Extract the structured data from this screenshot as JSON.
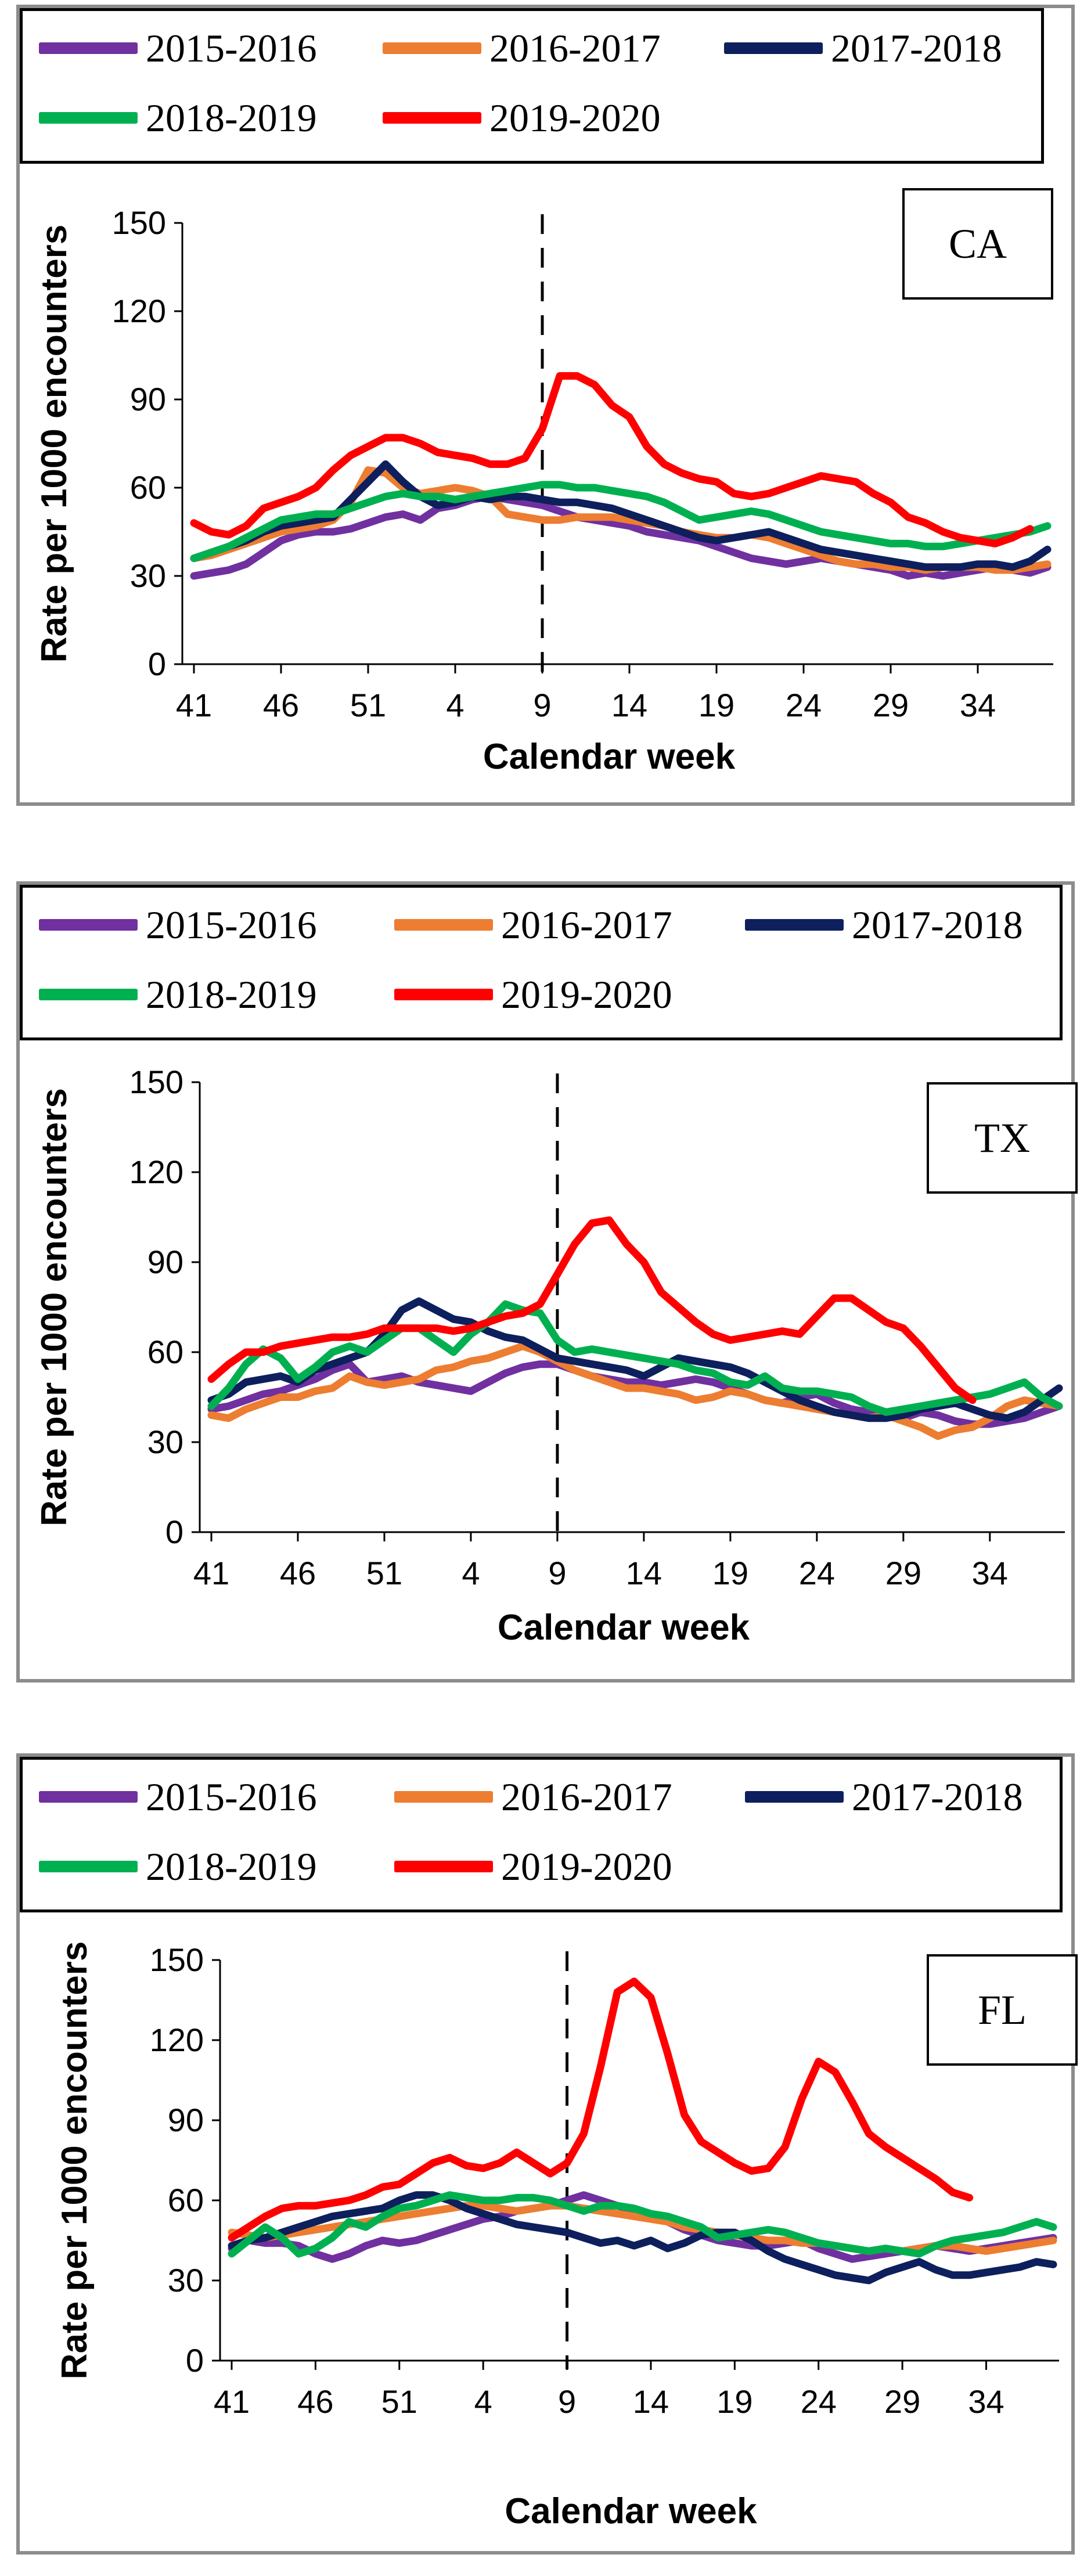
{
  "chart_data": [
    {
      "type": "line",
      "state": "CA",
      "xlabel": "Calendar week",
      "ylabel": "Rate per 1000 encounters",
      "ylim": [
        0,
        150
      ],
      "yticks": [
        "0",
        "30",
        "60",
        "90",
        "120",
        "150"
      ],
      "xtick_labels": [
        "41",
        "46",
        "51",
        "4",
        "9",
        "14",
        "19",
        "24",
        "29",
        "34"
      ],
      "marker_week_label": "9",
      "legend": [
        "2015-2016",
        "2016-2017",
        "2017-2018",
        "2018-2019",
        "2019-2020"
      ],
      "series": [
        {
          "name": "2015-2016",
          "color": "#7030A0",
          "values": [
            30,
            31,
            32,
            34,
            38,
            42,
            44,
            45,
            45,
            46,
            48,
            50,
            51,
            49,
            53,
            54,
            56,
            57,
            56,
            55,
            54,
            52,
            50,
            49,
            48,
            47,
            45,
            44,
            43,
            42,
            40,
            38,
            36,
            35,
            34,
            35,
            36,
            35,
            34,
            33,
            32,
            30,
            31,
            30,
            31,
            32,
            33,
            32,
            31,
            33
          ]
        },
        {
          "name": "2016-2017",
          "color": "#ED7D31",
          "values": [
            36,
            37,
            39,
            41,
            43,
            45,
            46,
            47,
            49,
            55,
            66,
            65,
            60,
            58,
            59,
            60,
            59,
            57,
            51,
            50,
            49,
            49,
            50,
            50,
            50,
            49,
            48,
            47,
            45,
            44,
            43,
            43,
            44,
            43,
            41,
            39,
            37,
            35,
            34,
            34,
            33,
            33,
            32,
            33,
            33,
            33,
            32,
            32,
            33,
            34
          ]
        },
        {
          "name": "2017-2018",
          "color": "#0D1F5C",
          "values": [
            36,
            38,
            40,
            42,
            45,
            47,
            48,
            49,
            50,
            56,
            62,
            68,
            62,
            57,
            54,
            55,
            57,
            56,
            57,
            57,
            56,
            55,
            55,
            54,
            53,
            51,
            49,
            47,
            45,
            43,
            42,
            43,
            44,
            45,
            43,
            41,
            39,
            38,
            37,
            36,
            35,
            34,
            33,
            33,
            33,
            34,
            34,
            33,
            35,
            39
          ]
        },
        {
          "name": "2018-2019",
          "color": "#00B050",
          "values": [
            36,
            38,
            40,
            43,
            46,
            49,
            50,
            51,
            51,
            53,
            55,
            57,
            58,
            57,
            57,
            56,
            57,
            58,
            59,
            60,
            61,
            61,
            60,
            60,
            59,
            58,
            57,
            55,
            52,
            49,
            50,
            51,
            52,
            51,
            49,
            47,
            45,
            44,
            43,
            42,
            41,
            41,
            40,
            40,
            41,
            42,
            43,
            44,
            45,
            47
          ]
        },
        {
          "name": "2019-2020",
          "color": "#FF0000",
          "values": [
            48,
            45,
            44,
            47,
            53,
            55,
            57,
            60,
            66,
            71,
            74,
            77,
            77,
            75,
            72,
            71,
            70,
            68,
            68,
            70,
            80,
            98,
            98,
            95,
            88,
            84,
            74,
            68,
            65,
            63,
            62,
            58,
            57,
            58,
            60,
            62,
            64,
            63,
            62,
            58,
            55,
            50,
            48,
            45,
            43,
            42,
            41,
            43,
            46
          ]
        }
      ]
    },
    {
      "type": "line",
      "state": "TX",
      "xlabel": "Calendar week",
      "ylabel": "Rate per 1000 encounters",
      "ylim": [
        0,
        150
      ],
      "yticks": [
        "0",
        "30",
        "60",
        "90",
        "120",
        "150"
      ],
      "xtick_labels": [
        "41",
        "46",
        "51",
        "4",
        "9",
        "14",
        "19",
        "24",
        "29",
        "34"
      ],
      "marker_week_label": "9",
      "legend": [
        "2015-2016",
        "2016-2017",
        "2017-2018",
        "2018-2019",
        "2019-2020"
      ],
      "series": [
        {
          "name": "2015-2016",
          "color": "#7030A0",
          "values": [
            41,
            42,
            44,
            46,
            47,
            49,
            51,
            54,
            56,
            50,
            51,
            52,
            50,
            49,
            48,
            47,
            50,
            53,
            55,
            56,
            56,
            54,
            52,
            51,
            50,
            50,
            49,
            50,
            51,
            50,
            48,
            46,
            44,
            43,
            45,
            46,
            43,
            41,
            40,
            39,
            38,
            40,
            39,
            37,
            36,
            36,
            37,
            38,
            40,
            42
          ]
        },
        {
          "name": "2016-2017",
          "color": "#ED7D31",
          "values": [
            39,
            38,
            41,
            43,
            45,
            45,
            47,
            48,
            52,
            50,
            49,
            50,
            51,
            54,
            55,
            57,
            58,
            60,
            62,
            60,
            57,
            54,
            52,
            50,
            48,
            48,
            47,
            46,
            44,
            45,
            47,
            46,
            44,
            43,
            42,
            41,
            40,
            39,
            38,
            39,
            37,
            35,
            32,
            34,
            35,
            38,
            42,
            44,
            43,
            42
          ]
        },
        {
          "name": "2017-2018",
          "color": "#0D1F5C",
          "values": [
            44,
            46,
            50,
            51,
            52,
            50,
            54,
            56,
            58,
            60,
            66,
            74,
            77,
            74,
            71,
            70,
            67,
            65,
            64,
            61,
            58,
            57,
            56,
            55,
            54,
            52,
            55,
            58,
            57,
            56,
            55,
            53,
            50,
            47,
            44,
            42,
            40,
            39,
            38,
            38,
            39,
            41,
            42,
            43,
            41,
            39,
            38,
            40,
            44,
            48
          ]
        },
        {
          "name": "2018-2019",
          "color": "#00B050",
          "values": [
            42,
            48,
            56,
            61,
            58,
            51,
            55,
            60,
            62,
            60,
            64,
            68,
            68,
            64,
            60,
            66,
            70,
            76,
            74,
            73,
            64,
            60,
            61,
            60,
            59,
            58,
            57,
            56,
            54,
            53,
            50,
            49,
            52,
            48,
            47,
            47,
            46,
            45,
            42,
            40,
            41,
            42,
            43,
            44,
            45,
            46,
            48,
            50,
            45,
            42
          ]
        },
        {
          "name": "2019-2020",
          "color": "#FF0000",
          "values": [
            51,
            56,
            60,
            60,
            62,
            63,
            64,
            65,
            65,
            66,
            68,
            68,
            68,
            68,
            67,
            68,
            70,
            72,
            73,
            76,
            86,
            96,
            103,
            104,
            96,
            90,
            80,
            75,
            70,
            66,
            64,
            65,
            66,
            67,
            66,
            72,
            78,
            78,
            74,
            70,
            68,
            62,
            55,
            48,
            44
          ]
        }
      ]
    },
    {
      "type": "line",
      "state": "FL",
      "xlabel": "Calendar week",
      "ylabel": "Rate per 1000 encounters",
      "ylim": [
        0,
        150
      ],
      "yticks": [
        "0",
        "30",
        "60",
        "90",
        "120",
        "150"
      ],
      "xtick_labels": [
        "41",
        "46",
        "51",
        "4",
        "9",
        "14",
        "19",
        "24",
        "29",
        "34"
      ],
      "marker_week_label": "9",
      "legend": [
        "2015-2016",
        "2016-2017",
        "2017-2018",
        "2018-2019",
        "2019-2020"
      ],
      "series": [
        {
          "name": "2015-2016",
          "color": "#7030A0",
          "values": [
            42,
            45,
            44,
            44,
            43,
            40,
            38,
            40,
            43,
            45,
            44,
            45,
            47,
            49,
            51,
            53,
            54,
            56,
            57,
            58,
            60,
            62,
            60,
            58,
            56,
            54,
            52,
            49,
            47,
            45,
            44,
            43,
            43,
            44,
            45,
            42,
            40,
            38,
            39,
            40,
            41,
            42,
            43,
            42,
            41,
            42,
            43,
            44,
            45,
            46
          ]
        },
        {
          "name": "2016-2017",
          "color": "#ED7D31",
          "values": [
            48,
            47,
            46,
            47,
            48,
            49,
            50,
            51,
            52,
            53,
            54,
            55,
            56,
            57,
            58,
            58,
            57,
            56,
            57,
            58,
            58,
            57,
            56,
            55,
            54,
            53,
            52,
            50,
            49,
            48,
            47,
            46,
            45,
            45,
            44,
            44,
            43,
            42,
            41,
            42,
            41,
            42,
            43,
            43,
            42,
            41,
            42,
            43,
            44,
            45
          ]
        },
        {
          "name": "2017-2018",
          "color": "#0D1F5C",
          "values": [
            43,
            45,
            46,
            48,
            50,
            52,
            54,
            55,
            56,
            57,
            60,
            62,
            62,
            60,
            57,
            55,
            53,
            51,
            50,
            49,
            48,
            46,
            44,
            45,
            43,
            45,
            42,
            44,
            47,
            48,
            48,
            45,
            41,
            38,
            36,
            34,
            32,
            31,
            30,
            33,
            35,
            37,
            34,
            32,
            32,
            33,
            34,
            35,
            37,
            36
          ]
        },
        {
          "name": "2018-2019",
          "color": "#00B050",
          "values": [
            40,
            45,
            50,
            46,
            40,
            42,
            46,
            52,
            50,
            54,
            57,
            58,
            60,
            62,
            61,
            60,
            60,
            61,
            61,
            60,
            58,
            56,
            58,
            58,
            57,
            55,
            54,
            52,
            50,
            46,
            47,
            48,
            49,
            48,
            46,
            44,
            43,
            42,
            41,
            42,
            41,
            40,
            43,
            45,
            46,
            47,
            48,
            50,
            52,
            50
          ]
        },
        {
          "name": "2019-2020",
          "color": "#FF0000",
          "values": [
            46,
            50,
            54,
            57,
            58,
            58,
            59,
            60,
            62,
            65,
            66,
            70,
            74,
            76,
            73,
            72,
            74,
            78,
            74,
            70,
            74,
            85,
            110,
            138,
            142,
            136,
            115,
            92,
            82,
            78,
            74,
            71,
            72,
            80,
            98,
            112,
            108,
            97,
            85,
            80,
            76,
            72,
            68,
            63,
            61
          ]
        }
      ]
    }
  ]
}
